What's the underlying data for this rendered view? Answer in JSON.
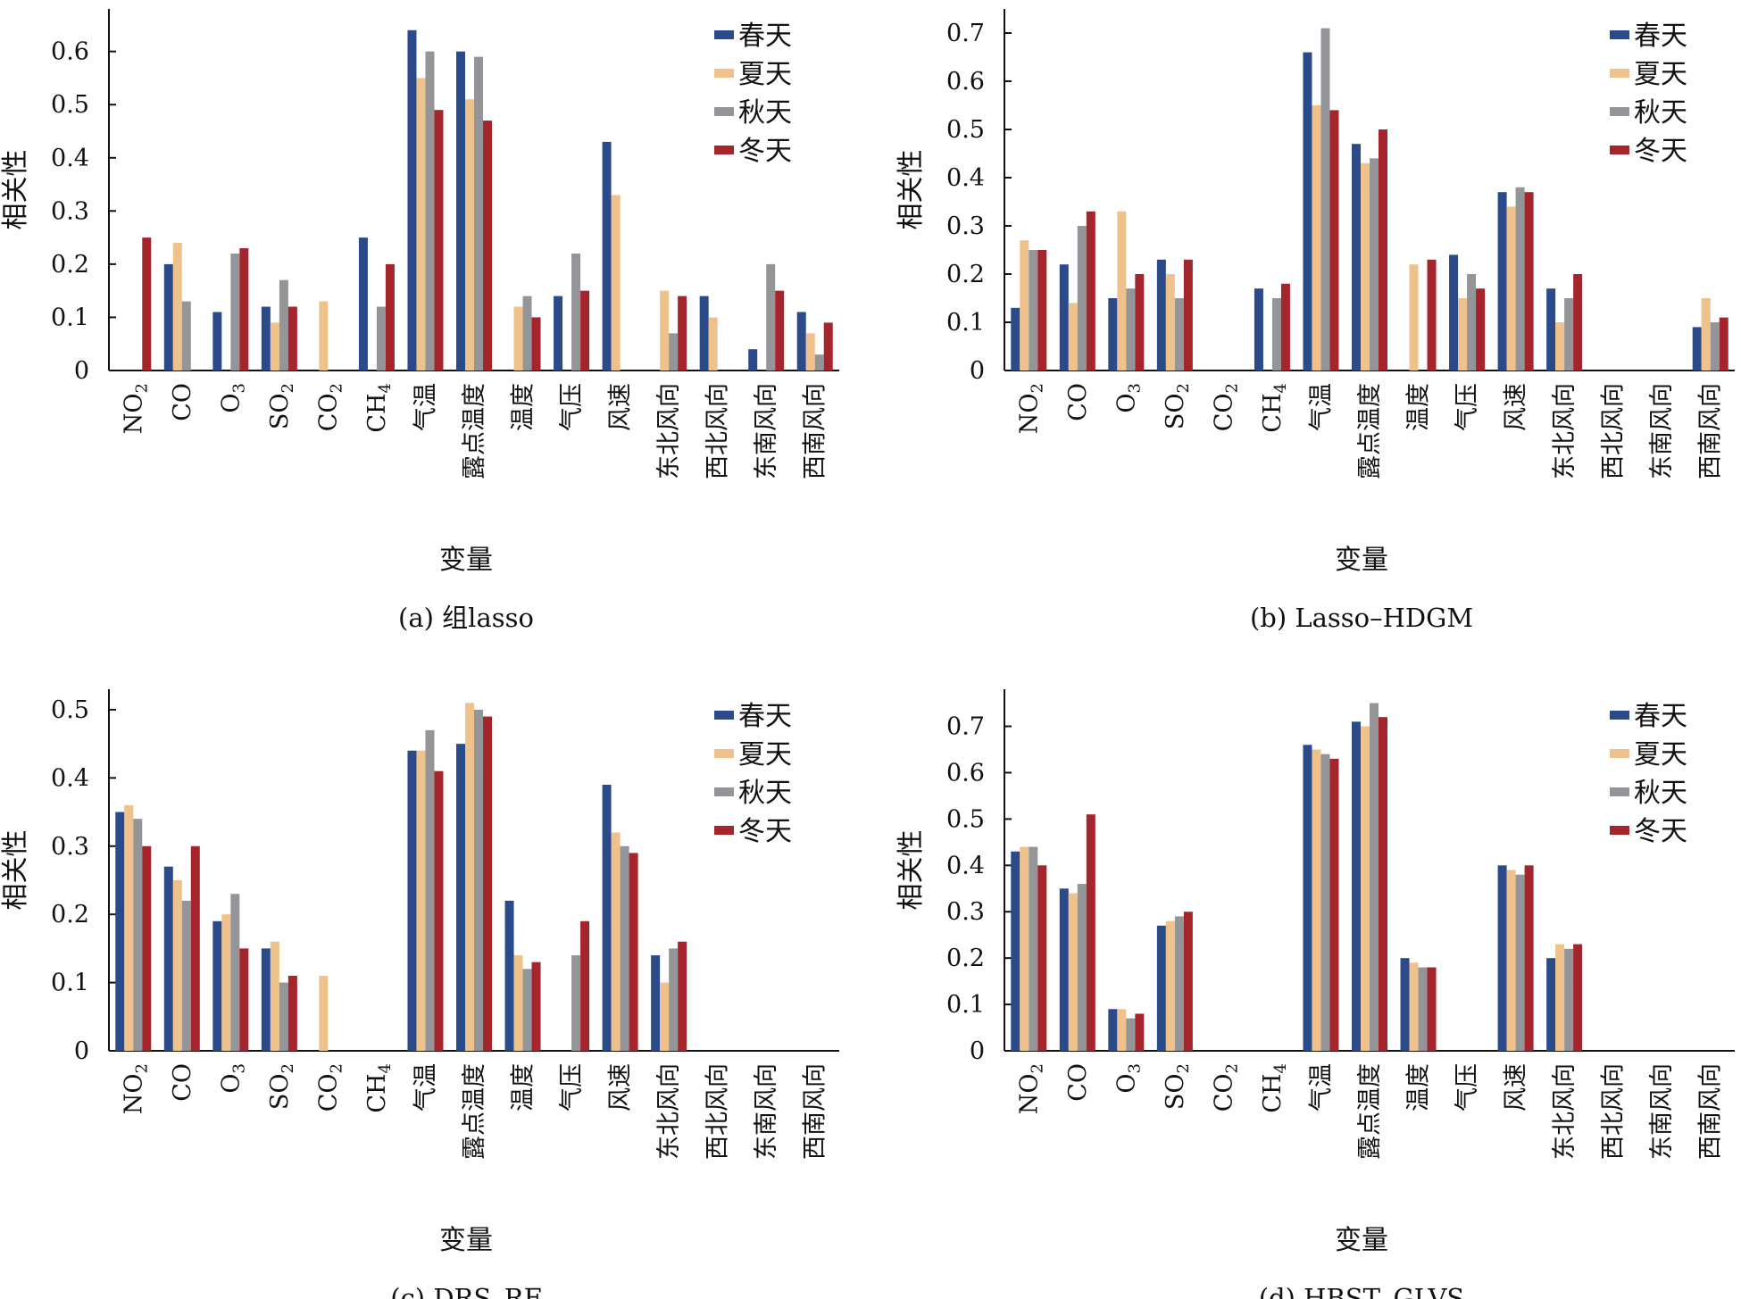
{
  "colors": {
    "春天": "#2a4a8a",
    "夏天": "#eec28a",
    "秋天": "#939598",
    "冬天": "#a5252d",
    "axis": "#111111"
  },
  "series_names": [
    "春天",
    "夏天",
    "秋天",
    "冬天"
  ],
  "categories": [
    {
      "main": "NO",
      "sub": "2"
    },
    {
      "main": "CO",
      "sub": ""
    },
    {
      "main": "O",
      "sub": "3"
    },
    {
      "main": "SO",
      "sub": "2"
    },
    {
      "main": "CO",
      "sub": "2"
    },
    {
      "main": "CH",
      "sub": "4"
    },
    {
      "main": "气温",
      "sub": ""
    },
    {
      "main": "露点温度",
      "sub": ""
    },
    {
      "main": "温度",
      "sub": ""
    },
    {
      "main": "气压",
      "sub": ""
    },
    {
      "main": "风速",
      "sub": ""
    },
    {
      "main": "东北风向",
      "sub": ""
    },
    {
      "main": "西北风向",
      "sub": ""
    },
    {
      "main": "东南风向",
      "sub": ""
    },
    {
      "main": "西南风向",
      "sub": ""
    }
  ],
  "chart_data": [
    {
      "type": "bar",
      "caption": "(a) 组lasso",
      "xlabel": "变量",
      "ylabel": "相关性",
      "ylim": [
        0,
        0.68
      ],
      "yticks": [
        "0",
        "0.1",
        "0.2",
        "0.3",
        "0.4",
        "0.5",
        "0.6"
      ],
      "legend": "top-right",
      "series": [
        {
          "name": "春天",
          "values": [
            0,
            0.2,
            0.11,
            0.12,
            0,
            0.25,
            0.64,
            0.6,
            0,
            0.14,
            0.43,
            0,
            0.14,
            0.04,
            0.11
          ]
        },
        {
          "name": "夏天",
          "values": [
            0,
            0.24,
            0,
            0.09,
            0.13,
            0,
            0.55,
            0.51,
            0.12,
            0,
            0.33,
            0.15,
            0.1,
            0,
            0.07
          ]
        },
        {
          "name": "秋天",
          "values": [
            0,
            0.13,
            0.22,
            0.17,
            0,
            0.12,
            0.6,
            0.59,
            0.14,
            0.22,
            0,
            0.07,
            0,
            0.2,
            0.03
          ]
        },
        {
          "name": "冬天",
          "values": [
            0.25,
            0,
            0.23,
            0.12,
            0,
            0.2,
            0.49,
            0.47,
            0.1,
            0.15,
            0,
            0.14,
            0,
            0.15,
            0.09
          ]
        }
      ]
    },
    {
      "type": "bar",
      "caption": "(b) Lasso–HDGM",
      "xlabel": "变量",
      "ylabel": "相关性",
      "ylim": [
        0,
        0.75
      ],
      "yticks": [
        "0",
        "0.1",
        "0.2",
        "0.3",
        "0.4",
        "0.5",
        "0.6",
        "0.7"
      ],
      "legend": "top-right",
      "series": [
        {
          "name": "春天",
          "values": [
            0.13,
            0.22,
            0.15,
            0.23,
            0,
            0.17,
            0.66,
            0.47,
            0,
            0.24,
            0.37,
            0.17,
            0,
            0,
            0.09
          ]
        },
        {
          "name": "夏天",
          "values": [
            0.27,
            0.14,
            0.33,
            0.2,
            0,
            0,
            0.55,
            0.43,
            0.22,
            0.15,
            0.34,
            0.1,
            0,
            0,
            0.15
          ]
        },
        {
          "name": "秋天",
          "values": [
            0.25,
            0.3,
            0.17,
            0.15,
            0,
            0.15,
            0.71,
            0.44,
            0,
            0.2,
            0.38,
            0.15,
            0,
            0,
            0.1
          ]
        },
        {
          "name": "冬天",
          "values": [
            0.25,
            0.33,
            0.2,
            0.23,
            0,
            0.18,
            0.54,
            0.5,
            0.23,
            0.17,
            0.37,
            0.2,
            0,
            0,
            0.11
          ]
        }
      ]
    },
    {
      "type": "bar",
      "caption": "(c) DRS–RF",
      "xlabel": "变量",
      "ylabel": "相关性",
      "ylim": [
        0,
        0.53
      ],
      "yticks": [
        "0",
        "0.1",
        "0.2",
        "0.3",
        "0.4",
        "0.5"
      ],
      "legend": "top-right",
      "series": [
        {
          "name": "春天",
          "values": [
            0.35,
            0.27,
            0.19,
            0.15,
            0,
            0,
            0.44,
            0.45,
            0.22,
            0,
            0.39,
            0.14,
            0,
            0,
            0
          ]
        },
        {
          "name": "夏天",
          "values": [
            0.36,
            0.25,
            0.2,
            0.16,
            0.11,
            0,
            0.44,
            0.51,
            0.14,
            0,
            0.32,
            0.1,
            0,
            0,
            0
          ]
        },
        {
          "name": "秋天",
          "values": [
            0.34,
            0.22,
            0.23,
            0.1,
            0,
            0,
            0.47,
            0.5,
            0.12,
            0.14,
            0.3,
            0.15,
            0,
            0,
            0
          ]
        },
        {
          "name": "冬天",
          "values": [
            0.3,
            0.3,
            0.15,
            0.11,
            0,
            0,
            0.41,
            0.49,
            0.13,
            0.19,
            0.29,
            0.16,
            0,
            0,
            0
          ]
        }
      ]
    },
    {
      "type": "bar",
      "caption": "(d) HBST–GLVS",
      "xlabel": "变量",
      "ylabel": "相关性",
      "ylim": [
        0,
        0.78
      ],
      "yticks": [
        "0",
        "0.1",
        "0.2",
        "0.3",
        "0.4",
        "0.5",
        "0.6",
        "0.7"
      ],
      "legend": "top-right",
      "series": [
        {
          "name": "春天",
          "values": [
            0.43,
            0.35,
            0.09,
            0.27,
            0,
            0,
            0.66,
            0.71,
            0.2,
            0,
            0.4,
            0.2,
            0,
            0,
            0
          ]
        },
        {
          "name": "夏天",
          "values": [
            0.44,
            0.34,
            0.09,
            0.28,
            0,
            0,
            0.65,
            0.7,
            0.19,
            0,
            0.39,
            0.23,
            0,
            0,
            0
          ]
        },
        {
          "name": "秋天",
          "values": [
            0.44,
            0.36,
            0.07,
            0.29,
            0,
            0,
            0.64,
            0.75,
            0.18,
            0,
            0.38,
            0.22,
            0,
            0,
            0
          ]
        },
        {
          "name": "冬天",
          "values": [
            0.4,
            0.51,
            0.08,
            0.3,
            0,
            0,
            0.63,
            0.72,
            0.18,
            0,
            0.4,
            0.23,
            0,
            0,
            0
          ]
        }
      ]
    }
  ]
}
